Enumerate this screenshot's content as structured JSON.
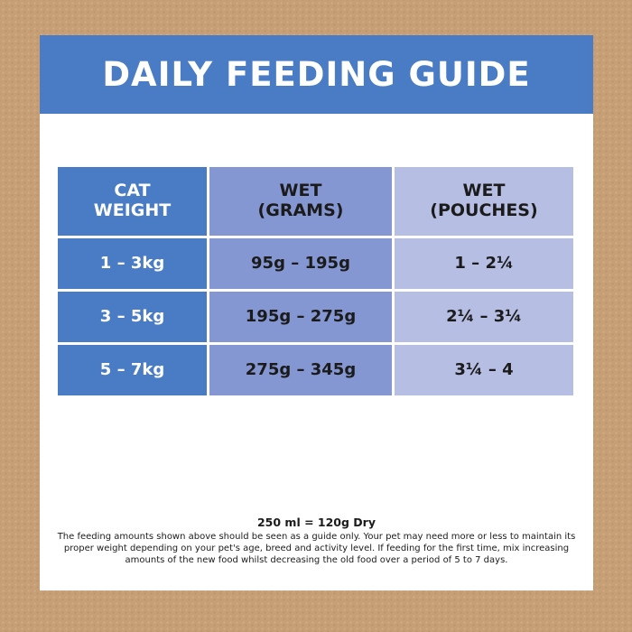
{
  "title": "DAILY FEEDING GUIDE",
  "table": {
    "headers": [
      [
        "CAT",
        "WEIGHT"
      ],
      [
        "WET",
        "(GRAMS)"
      ],
      [
        "WET",
        "(POUCHES)"
      ]
    ],
    "rows": [
      [
        "1 – 3kg",
        "95g – 195g",
        "1 – 2¼"
      ],
      [
        "3 – 5kg",
        "195g – 275g",
        "2¼ – 3¼"
      ],
      [
        "5 – 7kg",
        "275g – 345g",
        "3¼ – 4"
      ]
    ]
  },
  "footer": {
    "ratio": "250 ml = 120g Dry",
    "note": "The feeding amounts shown above should be seen as a guide only. Your pet may need more or less to maintain its proper weight depending on your pet's age, breed and activity level. If feeding for the first time, mix increasing amounts of the new food whilst decreasing the old food over a period of 5 to 7 days."
  },
  "colors": {
    "border": "#c79f76",
    "accent_blue": "#4a7cc6",
    "mid_blue": "#8497d2",
    "light_blue": "#b6bee3"
  }
}
